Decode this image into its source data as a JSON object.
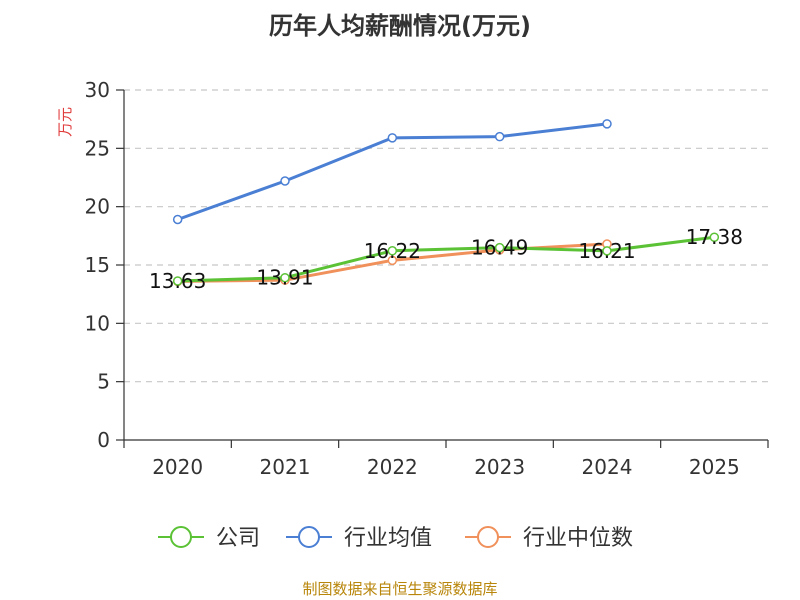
{
  "chart_data": {
    "type": "line",
    "title": "历年人均薪酬情况(万元)",
    "ylabel": "万元",
    "xlabel": "",
    "categories": [
      "2020",
      "2021",
      "2022",
      "2023",
      "2024",
      "2025"
    ],
    "ylim": [
      0,
      30
    ],
    "yticks": [
      "0",
      "5",
      "10",
      "15",
      "20",
      "25",
      "30"
    ],
    "grid": true,
    "legend_position": "bottom",
    "series": [
      {
        "name": "公司",
        "color": "#5bc236",
        "values": [
          13.63,
          13.91,
          16.22,
          16.49,
          16.21,
          17.38
        ],
        "labels": [
          "13.63",
          "13.91",
          "16.22",
          "16.49",
          "16.21",
          "17.38"
        ]
      },
      {
        "name": "行业均值",
        "color": "#4a7fd4",
        "values": [
          18.9,
          22.2,
          25.9,
          26.0,
          27.1,
          null
        ],
        "labels": []
      },
      {
        "name": "行业中位数",
        "color": "#f0905a",
        "values": [
          13.6,
          13.7,
          15.4,
          16.3,
          16.8,
          null
        ],
        "labels": []
      }
    ],
    "source": "制图数据来自恒生聚源数据库"
  }
}
